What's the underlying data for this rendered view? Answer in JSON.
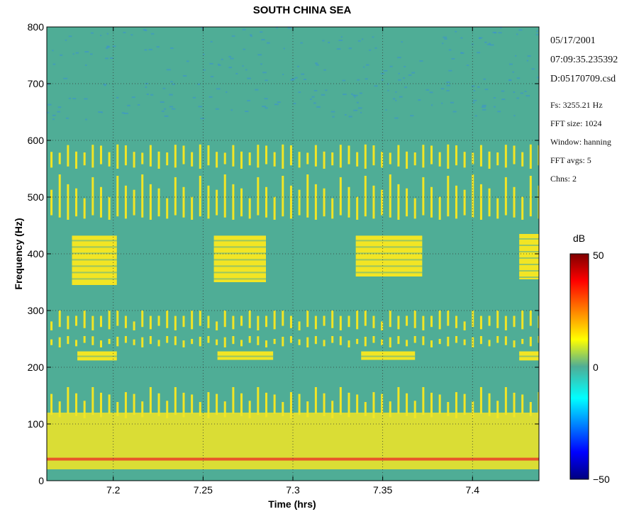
{
  "chart_data": {
    "type": "heatmap",
    "title": "SOUTH CHINA SEA",
    "xlabel": "Time (hrs)",
    "ylabel": "Frequency (Hz)",
    "xlim": [
      7.163,
      7.437
    ],
    "ylim": [
      0,
      800
    ],
    "x_ticks": [
      "7.2",
      "7.25",
      "7.3",
      "7.35",
      "7.4"
    ],
    "y_ticks": [
      "0",
      "100",
      "200",
      "300",
      "400",
      "500",
      "600",
      "700",
      "800"
    ],
    "grid": true,
    "colormap": "jet",
    "colorbar": {
      "label": "dB",
      "min": -50,
      "max": 50,
      "ticks": [
        "50",
        "0",
        "−50"
      ]
    },
    "background_level_db": 0,
    "features": [
      {
        "kind": "tonal band",
        "time_range": [
          7.163,
          7.437
        ],
        "freq_range": [
          20,
          120
        ],
        "level_db": 15
      },
      {
        "kind": "tonal line",
        "time_range": [
          7.163,
          7.437
        ],
        "freq": 38,
        "level_db": 30
      },
      {
        "kind": "block",
        "time_range": [
          7.177,
          7.202
        ],
        "freq_range": [
          345,
          432
        ],
        "level_db": 18
      },
      {
        "kind": "block",
        "time_range": [
          7.256,
          7.285
        ],
        "freq_range": [
          350,
          432
        ],
        "level_db": 18
      },
      {
        "kind": "block",
        "time_range": [
          7.335,
          7.372
        ],
        "freq_range": [
          360,
          432
        ],
        "level_db": 18
      },
      {
        "kind": "block",
        "time_range": [
          7.426,
          7.437
        ],
        "freq_range": [
          355,
          435
        ],
        "level_db": 22
      },
      {
        "kind": "block",
        "time_range": [
          7.18,
          7.202
        ],
        "freq_range": [
          212,
          228
        ],
        "level_db": 20
      },
      {
        "kind": "block",
        "time_range": [
          7.258,
          7.289
        ],
        "freq_range": [
          213,
          228
        ],
        "level_db": 20
      },
      {
        "kind": "block",
        "time_range": [
          7.338,
          7.368
        ],
        "freq_range": [
          213,
          228
        ],
        "level_db": 20
      },
      {
        "kind": "block",
        "time_range": [
          7.426,
          7.437
        ],
        "freq_range": [
          212,
          228
        ],
        "level_db": 20
      },
      {
        "kind": "pulse train",
        "time_range": [
          7.163,
          7.437
        ],
        "freq_range": [
          265,
          300
        ],
        "level_db": 16
      },
      {
        "kind": "pulse train",
        "time_range": [
          7.163,
          7.437
        ],
        "freq_range": [
          235,
          255
        ],
        "level_db": 20
      },
      {
        "kind": "pulse train",
        "time_range": [
          7.163,
          7.437
        ],
        "freq_range": [
          460,
          540
        ],
        "level_db": 14
      },
      {
        "kind": "pulse train",
        "time_range": [
          7.163,
          7.437
        ],
        "freq_range": [
          550,
          595
        ],
        "level_db": 10
      },
      {
        "kind": "pulse train",
        "time_range": [
          7.163,
          7.437
        ],
        "freq_range": [
          110,
          165
        ],
        "level_db": 12
      }
    ]
  },
  "info": {
    "date": "05/17/2001",
    "time": "07:09:35.235392",
    "file": "D:05170709.csd",
    "fs": "Fs: 3255.21 Hz",
    "fft_size": "FFT size: 1024",
    "window": "Window: hanning",
    "fft_avgs": "FFT avgs: 5",
    "chns": "Chns: 2"
  },
  "colors": {
    "background": "#4fad96",
    "feature": "#f2e524",
    "hot": "#e8552a",
    "low": "#3a8fd6"
  }
}
